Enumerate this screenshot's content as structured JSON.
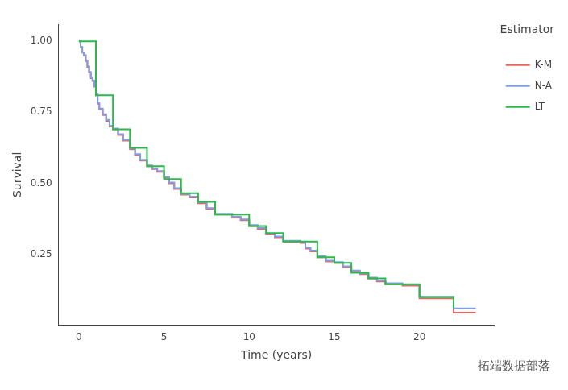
{
  "chart_data": {
    "type": "line",
    "x_label": "Time (years)",
    "y_label": "Survival",
    "legend_title": "Estimator",
    "legend": "right",
    "grid": false,
    "annotations": [
      "拓端数据部落"
    ],
    "xlim": [
      -1.2,
      24.4
    ],
    "xticks": [
      0,
      5,
      10,
      15,
      20
    ],
    "ylim": [
      0,
      1.06
    ],
    "yticks": [
      0.25,
      {
        "value": 0.5,
        "label": "0.50"
      },
      0.75,
      {
        "value": 1,
        "label": "1.00"
      }
    ],
    "series": [
      {
        "name": "K-M",
        "color": "#e8665a",
        "line_style": "step",
        "x": [
          0,
          0.1,
          0.2,
          0.3,
          0.4,
          0.5,
          0.6,
          0.7,
          0.8,
          0.9,
          1.0,
          1.1,
          1.2,
          1.4,
          1.6,
          1.8,
          2.0,
          2.3,
          2.6,
          3.0,
          3.3,
          3.6,
          4.0,
          4.3,
          4.6,
          5.0,
          5.3,
          5.6,
          6.0,
          6.5,
          7.0,
          7.5,
          8.0,
          8.5,
          9.0,
          9.5,
          10.0,
          10.5,
          11.0,
          11.5,
          12.0,
          13.0,
          13.3,
          13.6,
          14.0,
          14.5,
          15.0,
          15.5,
          16.0,
          16.5,
          17.0,
          17.5,
          18.0,
          19.0,
          19.9,
          20.0,
          21.0,
          22.0,
          23.3
        ],
        "values": [
          1.0,
          0.98,
          0.96,
          0.95,
          0.93,
          0.91,
          0.89,
          0.87,
          0.86,
          0.84,
          0.81,
          0.78,
          0.76,
          0.74,
          0.72,
          0.7,
          0.69,
          0.67,
          0.65,
          0.62,
          0.6,
          0.58,
          0.56,
          0.55,
          0.54,
          0.52,
          0.5,
          0.48,
          0.46,
          0.45,
          0.43,
          0.41,
          0.39,
          0.39,
          0.38,
          0.37,
          0.35,
          0.34,
          0.32,
          0.31,
          0.295,
          0.29,
          0.27,
          0.26,
          0.24,
          0.225,
          0.22,
          0.205,
          0.19,
          0.18,
          0.165,
          0.155,
          0.145,
          0.14,
          0.14,
          0.095,
          0.095,
          0.045,
          0.045
        ]
      },
      {
        "name": "N-A",
        "color": "#7f9fe6",
        "line_style": "step",
        "x": [
          0,
          0.1,
          0.2,
          0.3,
          0.4,
          0.5,
          0.6,
          0.7,
          0.8,
          0.9,
          1.0,
          1.1,
          1.2,
          1.4,
          1.6,
          1.8,
          2.0,
          2.3,
          2.6,
          3.0,
          3.3,
          3.6,
          4.0,
          4.3,
          4.6,
          5.0,
          5.3,
          5.6,
          6.0,
          6.5,
          7.0,
          7.5,
          8.0,
          8.5,
          9.0,
          9.5,
          10.0,
          10.5,
          11.0,
          11.5,
          12.0,
          13.0,
          13.3,
          13.6,
          14.0,
          14.5,
          15.0,
          15.5,
          16.0,
          16.5,
          17.0,
          17.5,
          18.0,
          19.0,
          19.9,
          20.0,
          21.0,
          22.0,
          23.3
        ],
        "values": [
          1.0,
          0.98,
          0.961,
          0.951,
          0.931,
          0.912,
          0.892,
          0.872,
          0.862,
          0.842,
          0.813,
          0.783,
          0.763,
          0.743,
          0.723,
          0.703,
          0.693,
          0.673,
          0.653,
          0.623,
          0.603,
          0.583,
          0.563,
          0.553,
          0.543,
          0.523,
          0.503,
          0.483,
          0.463,
          0.453,
          0.433,
          0.413,
          0.393,
          0.393,
          0.383,
          0.373,
          0.353,
          0.343,
          0.323,
          0.313,
          0.298,
          0.293,
          0.273,
          0.263,
          0.243,
          0.228,
          0.223,
          0.208,
          0.193,
          0.183,
          0.168,
          0.158,
          0.148,
          0.143,
          0.143,
          0.1,
          0.1,
          0.06,
          0.06
        ]
      },
      {
        "name": "LT",
        "color": "#2cb84a",
        "line_style": "step",
        "x": [
          0,
          1,
          2,
          3,
          4,
          5,
          6,
          7,
          8,
          10,
          11,
          12,
          14,
          15,
          16,
          17,
          18,
          20,
          22
        ],
        "values": [
          1.0,
          0.81,
          0.69,
          0.625,
          0.56,
          0.515,
          0.465,
          0.435,
          0.39,
          0.35,
          0.325,
          0.295,
          0.24,
          0.22,
          0.185,
          0.165,
          0.145,
          0.1,
          0.06
        ]
      }
    ]
  }
}
